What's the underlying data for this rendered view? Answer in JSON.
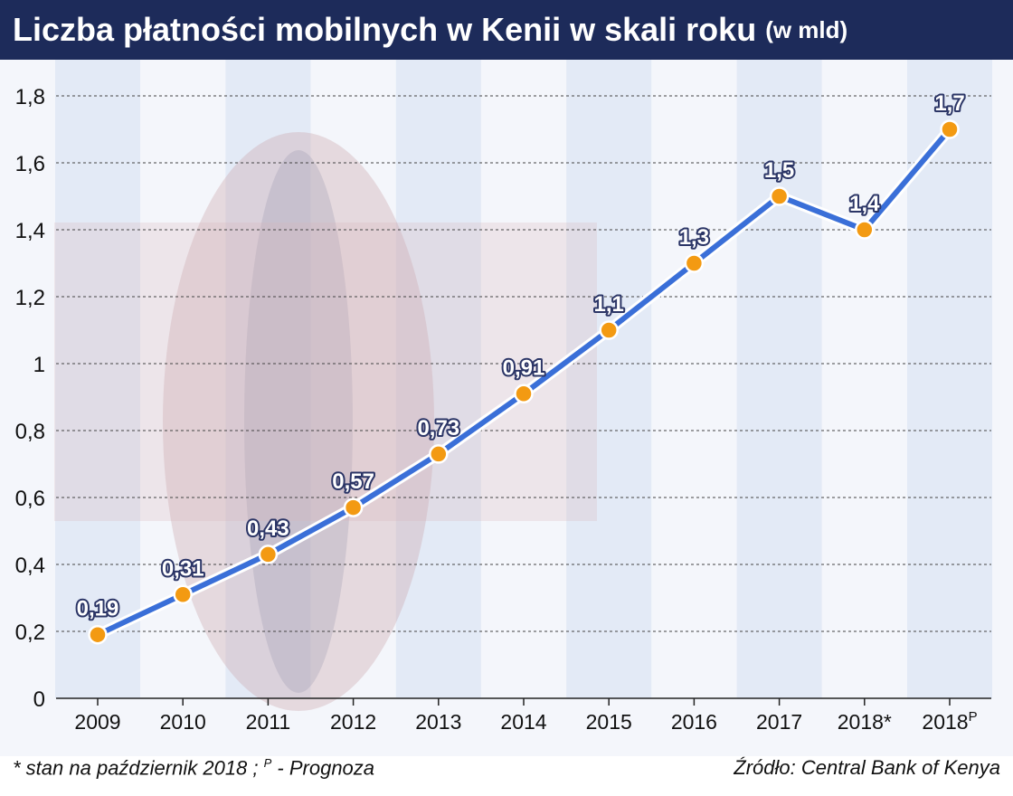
{
  "header": {
    "title": "Liczba płatności mobilnych w Kenii w skali roku",
    "unit": "(w mld)"
  },
  "footer": {
    "note_prefix": "* stan na październik 2018 ; ",
    "note_sup": "P",
    "note_suffix": " - Prognoza",
    "source": "Źródło: Central Bank of Kenya"
  },
  "colors": {
    "title_bg": "#1d2b5a",
    "line": "#3a6fd8",
    "marker": "#f39a12",
    "band": "#dfe7f5"
  },
  "chart_data": {
    "type": "line",
    "title": "Liczba płatności mobilnych w Kenii w skali roku (w mld)",
    "categories": [
      "2009",
      "2010",
      "2011",
      "2012",
      "2013",
      "2014",
      "2015",
      "2016",
      "2017",
      "2018*",
      "2018P"
    ],
    "category_labels": [
      {
        "main": "2009",
        "sup": ""
      },
      {
        "main": "2010",
        "sup": ""
      },
      {
        "main": "2011",
        "sup": ""
      },
      {
        "main": "2012",
        "sup": ""
      },
      {
        "main": "2013",
        "sup": ""
      },
      {
        "main": "2014",
        "sup": ""
      },
      {
        "main": "2015",
        "sup": ""
      },
      {
        "main": "2016",
        "sup": ""
      },
      {
        "main": "2017",
        "sup": ""
      },
      {
        "main": "2018*",
        "sup": ""
      },
      {
        "main": "2018",
        "sup": "P"
      }
    ],
    "values": [
      0.19,
      0.31,
      0.43,
      0.57,
      0.73,
      0.91,
      1.1,
      1.3,
      1.5,
      1.4,
      1.7
    ],
    "value_labels": [
      "0,19",
      "0,31",
      "0,43",
      "0,57",
      "0,73",
      "0,91",
      "1,1",
      "1,3",
      "1,5",
      "1,4",
      "1,7"
    ],
    "ylim": [
      0,
      1.8
    ],
    "yticks": [
      0,
      0.2,
      0.4,
      0.6,
      0.8,
      1,
      1.2,
      1.4,
      1.6,
      1.8
    ],
    "ytick_labels": [
      "0",
      "0,2",
      "0,4",
      "0,6",
      "0,8",
      "1",
      "1,2",
      "1,4",
      "1,6",
      "1,8"
    ],
    "grid": true
  }
}
